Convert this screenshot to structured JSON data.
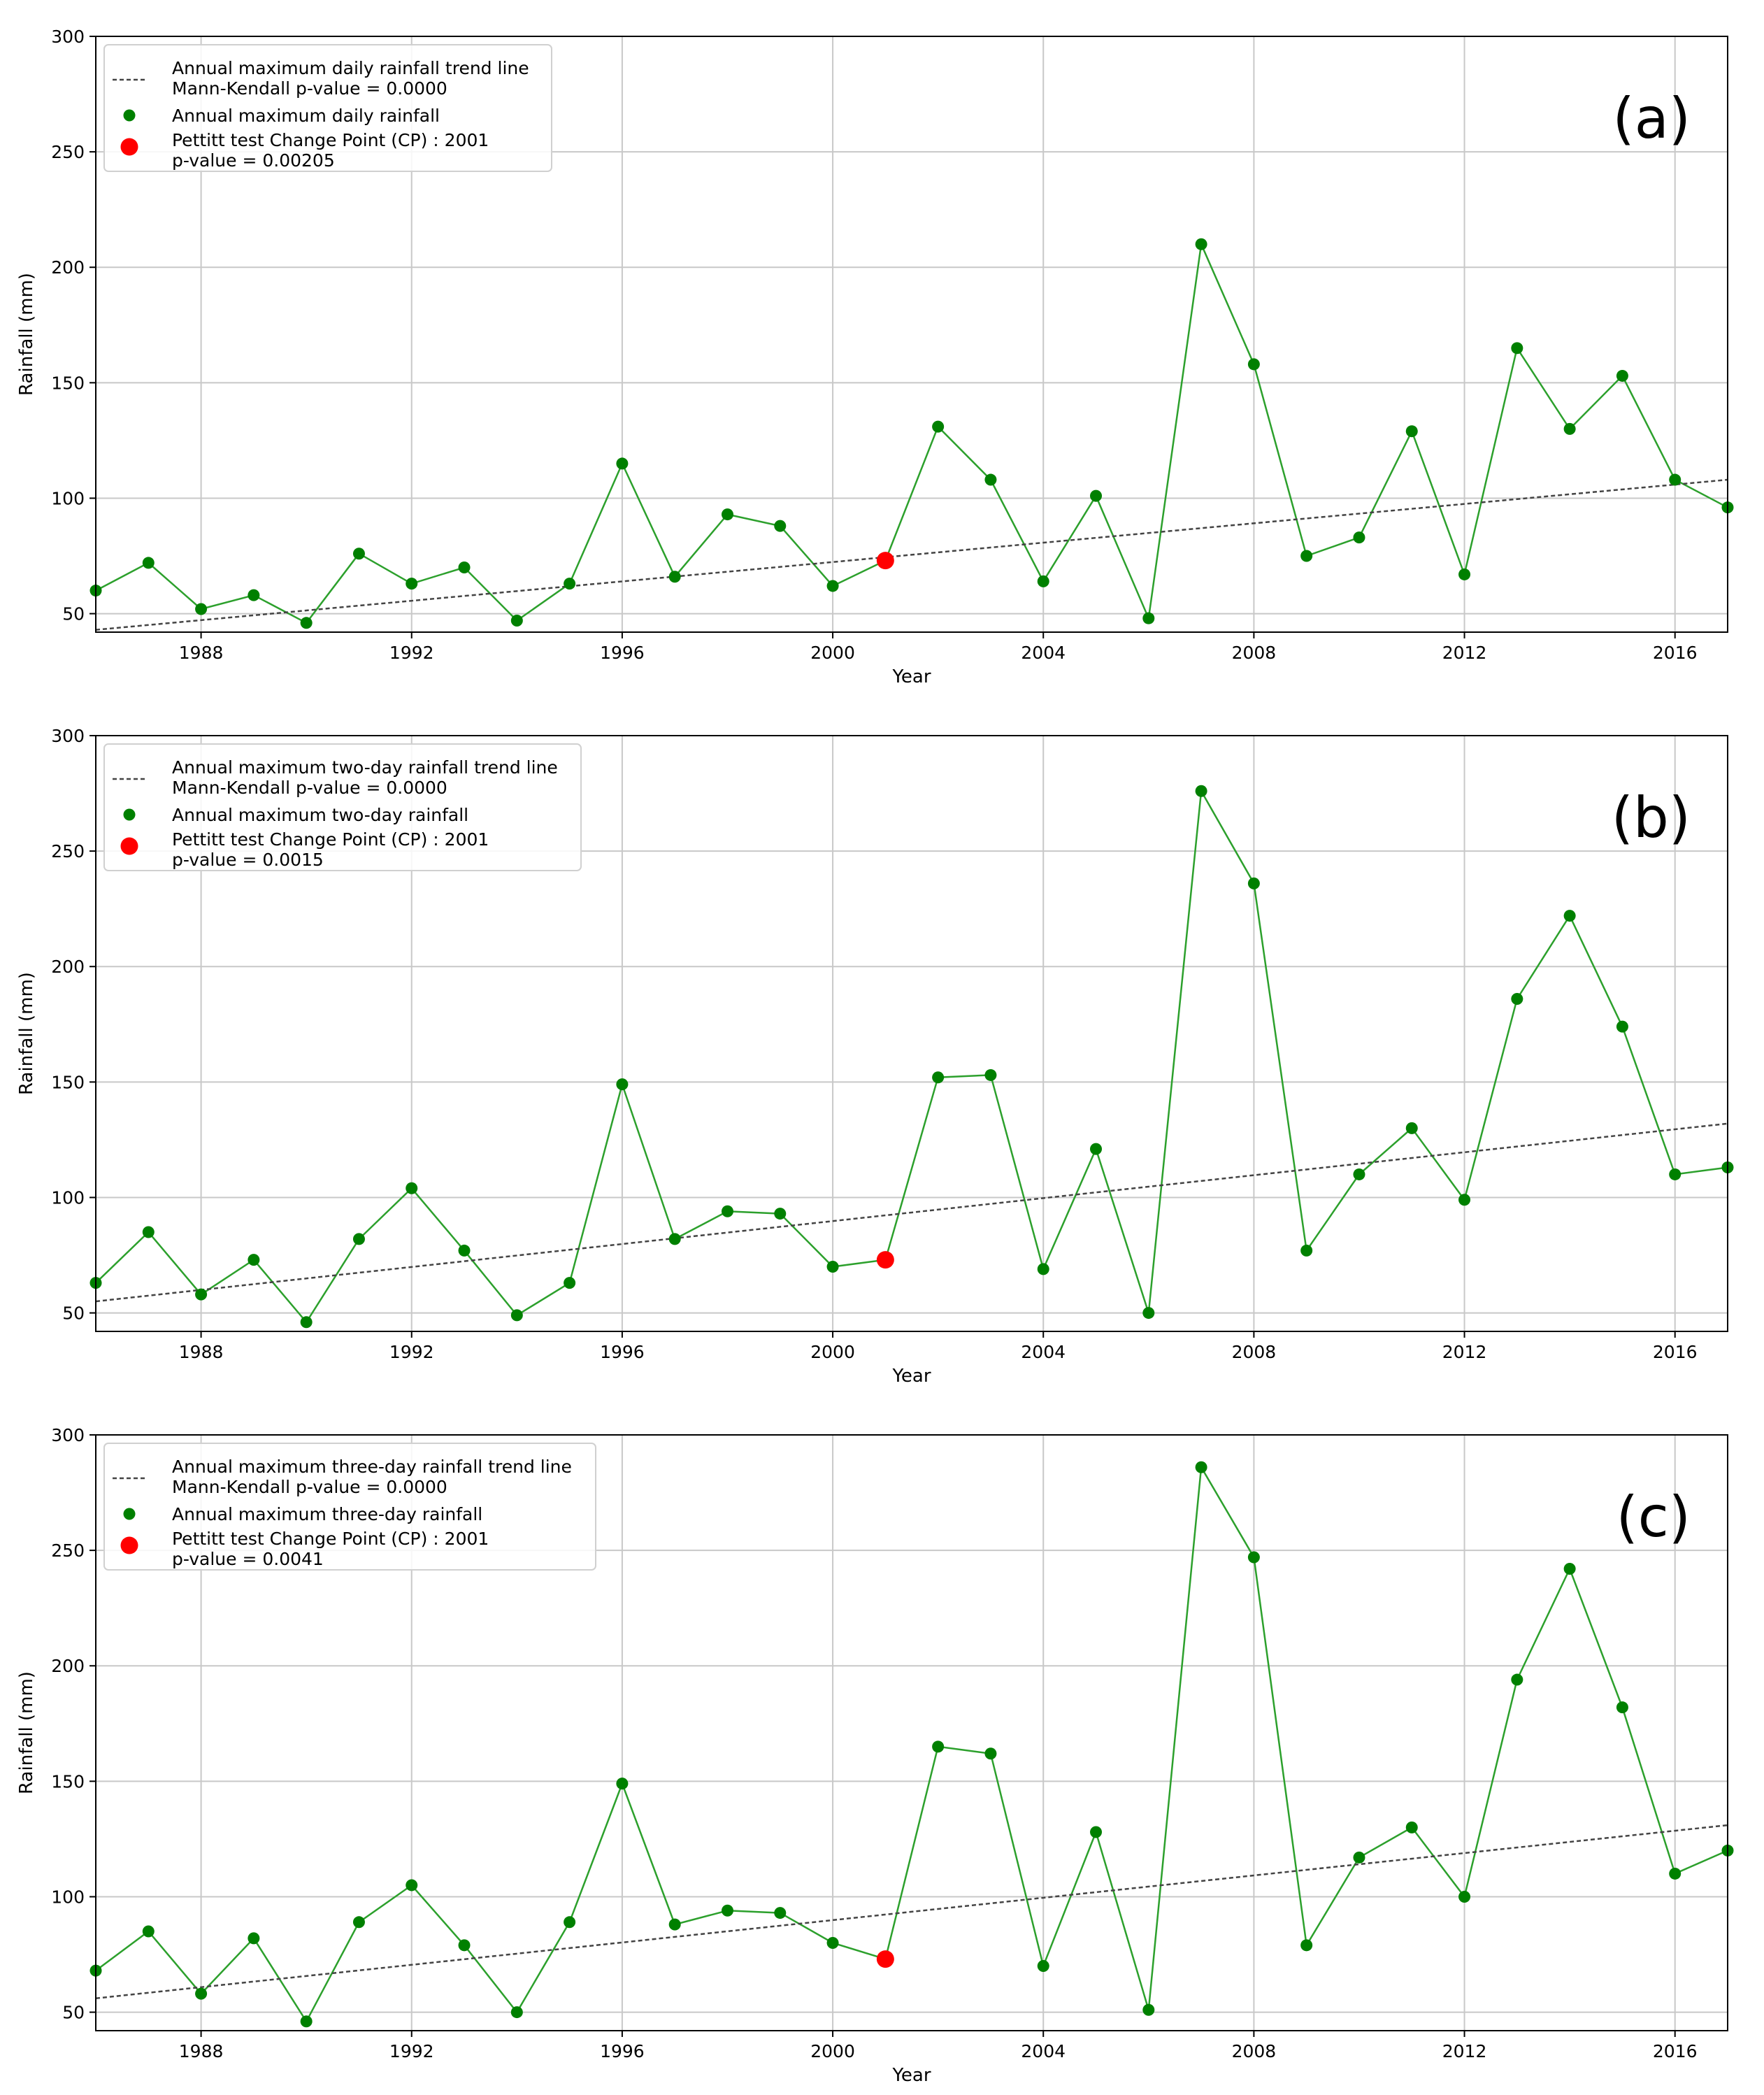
{
  "chart_data": [
    {
      "type": "line",
      "panel_label": "(a)",
      "xlabel": "Year",
      "ylabel": "Rainfall (mm)",
      "xlim": [
        1986,
        2017
      ],
      "ylim": [
        42,
        300
      ],
      "xticks": [
        1988,
        1992,
        1996,
        2000,
        2004,
        2008,
        2012,
        2016
      ],
      "yticks": [
        50,
        100,
        150,
        200,
        250,
        300
      ],
      "grid": true,
      "legend_position": "upper-left",
      "series": {
        "name": "Annual maximum daily rainfall",
        "color": "#008000",
        "x": [
          1986,
          1987,
          1988,
          1989,
          1990,
          1991,
          1992,
          1993,
          1994,
          1995,
          1996,
          1997,
          1998,
          1999,
          2000,
          2001,
          2002,
          2003,
          2004,
          2005,
          2006,
          2007,
          2008,
          2009,
          2010,
          2011,
          2012,
          2013,
          2014,
          2015,
          2016,
          2017
        ],
        "y": [
          60,
          72,
          52,
          58,
          46,
          76,
          63,
          70,
          47,
          63,
          115,
          66,
          93,
          88,
          62,
          73,
          131,
          108,
          64,
          101,
          48,
          210,
          158,
          75,
          83,
          129,
          67,
          165,
          130,
          153,
          108,
          96
        ]
      },
      "trend": {
        "name": "Annual maximum daily rainfall trend line",
        "annotation": "Mann-Kendall p-value = 0.0000",
        "start": [
          1986,
          43
        ],
        "end": [
          2017,
          108
        ],
        "color": "#444444"
      },
      "change_point": {
        "name": "Pettitt test Change Point (CP) : 2001",
        "annotation": "p-value = 0.00205",
        "x": 2001,
        "y": 73,
        "color": "#ff0000"
      }
    },
    {
      "type": "line",
      "panel_label": "(b)",
      "xlabel": "Year",
      "ylabel": "Rainfall (mm)",
      "xlim": [
        1986,
        2017
      ],
      "ylim": [
        42,
        300
      ],
      "xticks": [
        1988,
        1992,
        1996,
        2000,
        2004,
        2008,
        2012,
        2016
      ],
      "yticks": [
        50,
        100,
        150,
        200,
        250,
        300
      ],
      "grid": true,
      "legend_position": "upper-left",
      "series": {
        "name": "Annual maximum two-day rainfall",
        "color": "#008000",
        "x": [
          1986,
          1987,
          1988,
          1989,
          1990,
          1991,
          1992,
          1993,
          1994,
          1995,
          1996,
          1997,
          1998,
          1999,
          2000,
          2001,
          2002,
          2003,
          2004,
          2005,
          2006,
          2007,
          2008,
          2009,
          2010,
          2011,
          2012,
          2013,
          2014,
          2015,
          2016,
          2017
        ],
        "y": [
          63,
          85,
          58,
          73,
          46,
          82,
          104,
          77,
          49,
          63,
          149,
          82,
          94,
          93,
          70,
          73,
          152,
          153,
          69,
          121,
          50,
          276,
          236,
          77,
          110,
          130,
          99,
          186,
          222,
          174,
          110,
          113
        ]
      },
      "trend": {
        "name": "Annual maximum two-day rainfall trend line",
        "annotation": "Mann-Kendall p-value = 0.0000",
        "start": [
          1986,
          55
        ],
        "end": [
          2017,
          132
        ],
        "color": "#444444"
      },
      "change_point": {
        "name": "Pettitt test Change Point (CP) : 2001",
        "annotation": "p-value = 0.0015",
        "x": 2001,
        "y": 73,
        "color": "#ff0000"
      }
    },
    {
      "type": "line",
      "panel_label": "(c)",
      "xlabel": "Year",
      "ylabel": "Rainfall (mm)",
      "xlim": [
        1986,
        2017
      ],
      "ylim": [
        42,
        300
      ],
      "xticks": [
        1988,
        1992,
        1996,
        2000,
        2004,
        2008,
        2012,
        2016
      ],
      "yticks": [
        50,
        100,
        150,
        200,
        250,
        300
      ],
      "grid": true,
      "legend_position": "upper-left",
      "series": {
        "name": "Annual maximum three-day rainfall",
        "color": "#008000",
        "x": [
          1986,
          1987,
          1988,
          1989,
          1990,
          1991,
          1992,
          1993,
          1994,
          1995,
          1996,
          1997,
          1998,
          1999,
          2000,
          2001,
          2002,
          2003,
          2004,
          2005,
          2006,
          2007,
          2008,
          2009,
          2010,
          2011,
          2012,
          2013,
          2014,
          2015,
          2016,
          2017
        ],
        "y": [
          68,
          85,
          58,
          82,
          46,
          89,
          105,
          79,
          50,
          89,
          149,
          88,
          94,
          93,
          80,
          73,
          165,
          162,
          70,
          128,
          51,
          286,
          247,
          79,
          117,
          130,
          100,
          194,
          242,
          182,
          110,
          120
        ]
      },
      "trend": {
        "name": "Annual maximum three-day rainfall trend line",
        "annotation": "Mann-Kendall p-value = 0.0000",
        "start": [
          1986,
          56
        ],
        "end": [
          2017,
          131
        ],
        "color": "#444444"
      },
      "change_point": {
        "name": "Pettitt test Change Point (CP) : 2001",
        "annotation": "p-value = 0.0041",
        "x": 2001,
        "y": 73,
        "color": "#ff0000"
      }
    }
  ]
}
